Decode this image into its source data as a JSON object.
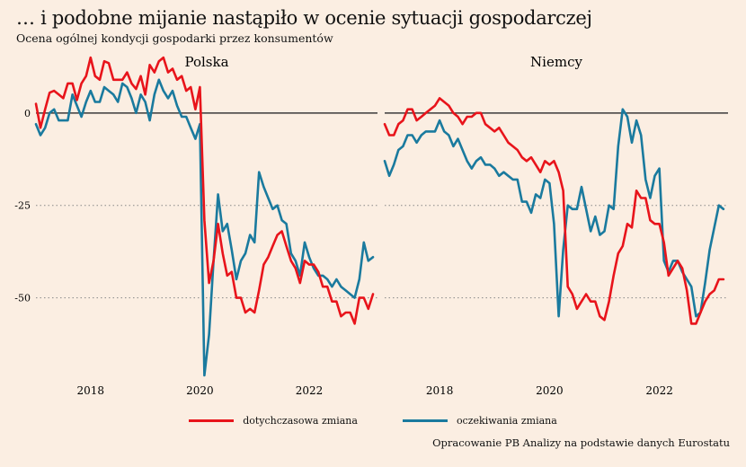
{
  "title": "… i podobne mijanie nastąpiło w ocenie sytuacji gospodarczej",
  "subtitle": "Ocena ogólnej kondycji gospodarki przez konsumentów",
  "source": "Opracowanie PB Analizy na podstawie danych Eurostatu",
  "colors": {
    "current": "#e8141b",
    "expected": "#1a7a9e",
    "zero": "#3a3a3a",
    "grid": "#888888"
  },
  "legend": [
    {
      "label": "dotychczasowa zmiana",
      "color": "#e8141b"
    },
    {
      "label": "oczekiwania zmiana",
      "color": "#1a7a9e"
    }
  ],
  "chart_data": [
    {
      "type": "line",
      "title": "Polska",
      "x_range": [
        2017.0,
        2023.25
      ],
      "ylim": [
        -71,
        16
      ],
      "ytick_values": [
        0,
        -25,
        -50
      ],
      "ytick_labels": [
        "0",
        "-25",
        "-50"
      ],
      "xtick_values": [
        2018,
        2020,
        2022
      ],
      "xtick_labels": [
        "2018",
        "2020",
        "2022"
      ],
      "grid": "dotted at -25 and -50, solid at 0",
      "series": [
        {
          "name": "dotychczasowa zmiana",
          "color": "#e8141b",
          "x": [
            2017.0,
            2017.083,
            2017.167,
            2017.25,
            2017.333,
            2017.417,
            2017.5,
            2017.583,
            2017.667,
            2017.75,
            2017.833,
            2017.917,
            2018.0,
            2018.083,
            2018.167,
            2018.25,
            2018.333,
            2018.417,
            2018.5,
            2018.583,
            2018.667,
            2018.75,
            2018.833,
            2018.917,
            2019.0,
            2019.083,
            2019.167,
            2019.25,
            2019.333,
            2019.417,
            2019.5,
            2019.583,
            2019.667,
            2019.75,
            2019.833,
            2019.917,
            2020.0,
            2020.083,
            2020.167,
            2020.25,
            2020.333,
            2020.417,
            2020.5,
            2020.583,
            2020.667,
            2020.75,
            2020.833,
            2020.917,
            2021.0,
            2021.083,
            2021.167,
            2021.25,
            2021.333,
            2021.417,
            2021.5,
            2021.583,
            2021.667,
            2021.75,
            2021.833,
            2021.917,
            2022.0,
            2022.083,
            2022.167,
            2022.25,
            2022.333,
            2022.417,
            2022.5,
            2022.583,
            2022.667,
            2022.75,
            2022.833,
            2022.917,
            2023.0,
            2023.083,
            2023.167
          ],
          "y": [
            2.5,
            -4,
            1,
            5.5,
            6,
            5,
            4,
            8,
            8,
            3.5,
            8,
            10,
            15,
            10,
            9,
            14,
            13.5,
            9,
            9,
            9,
            11,
            8,
            6.5,
            10,
            5,
            13,
            11,
            14,
            15,
            11,
            12,
            9,
            10,
            6,
            7,
            1,
            7,
            -29,
            -46,
            -40,
            -30,
            -38,
            -44,
            -43,
            -50,
            -50,
            -54,
            -53,
            -54,
            -48,
            -41,
            -39,
            -36,
            -33,
            -32,
            -36,
            -40,
            -42,
            -46,
            -40,
            -41,
            -41,
            -43,
            -47,
            -47,
            -51,
            -51,
            -55,
            -54,
            -54,
            -57,
            -50,
            -50,
            -53,
            -49
          ]
        },
        {
          "name": "oczekiwania zmiana",
          "color": "#1a7a9e",
          "x": [
            2017.0,
            2017.083,
            2017.167,
            2017.25,
            2017.333,
            2017.417,
            2017.5,
            2017.583,
            2017.667,
            2017.75,
            2017.833,
            2017.917,
            2018.0,
            2018.083,
            2018.167,
            2018.25,
            2018.333,
            2018.417,
            2018.5,
            2018.583,
            2018.667,
            2018.75,
            2018.833,
            2018.917,
            2019.0,
            2019.083,
            2019.167,
            2019.25,
            2019.333,
            2019.417,
            2019.5,
            2019.583,
            2019.667,
            2019.75,
            2019.833,
            2019.917,
            2020.0,
            2020.083,
            2020.167,
            2020.25,
            2020.333,
            2020.417,
            2020.5,
            2020.583,
            2020.667,
            2020.75,
            2020.833,
            2020.917,
            2021.0,
            2021.083,
            2021.167,
            2021.25,
            2021.333,
            2021.417,
            2021.5,
            2021.583,
            2021.667,
            2021.75,
            2021.833,
            2021.917,
            2022.0,
            2022.083,
            2022.167,
            2022.25,
            2022.333,
            2022.417,
            2022.5,
            2022.583,
            2022.667,
            2022.75,
            2022.833,
            2022.917,
            2023.0,
            2023.083,
            2023.167
          ],
          "y": [
            -3,
            -6,
            -4,
            0,
            1,
            -2,
            -2,
            -2,
            5,
            2,
            -1,
            3,
            6,
            3,
            3,
            7,
            6,
            5,
            3,
            8,
            7,
            4,
            0,
            5,
            3,
            -2,
            5,
            9,
            6,
            4,
            6,
            2,
            -1,
            -1,
            -4,
            -7,
            -3,
            -71,
            -60,
            -40,
            -22,
            -32,
            -30,
            -37,
            -45,
            -40,
            -38,
            -33,
            -35,
            -16,
            -20,
            -23,
            -26,
            -25,
            -29,
            -30,
            -38,
            -40,
            -44,
            -35,
            -39,
            -42,
            -44,
            -44,
            -45,
            -47,
            -45,
            -47,
            -48,
            -49,
            -50,
            -45,
            -35,
            -40,
            -39
          ]
        }
      ]
    },
    {
      "type": "line",
      "title": "Niemcy",
      "x_range": [
        2017.0,
        2023.25
      ],
      "ylim": [
        -71,
        16
      ],
      "ytick_values": [
        0,
        -25,
        -50
      ],
      "ytick_labels": [
        "0",
        "-25",
        "-50"
      ],
      "xtick_values": [
        2018,
        2020,
        2022
      ],
      "xtick_labels": [
        "2018",
        "2020",
        "2022"
      ],
      "grid": "dotted at -25 and -50, solid at 0",
      "series": [
        {
          "name": "dotychczasowa zmiana",
          "color": "#e8141b",
          "x": [
            2017.0,
            2017.083,
            2017.167,
            2017.25,
            2017.333,
            2017.417,
            2017.5,
            2017.583,
            2017.667,
            2017.75,
            2017.833,
            2017.917,
            2018.0,
            2018.083,
            2018.167,
            2018.25,
            2018.333,
            2018.417,
            2018.5,
            2018.583,
            2018.667,
            2018.75,
            2018.833,
            2018.917,
            2019.0,
            2019.083,
            2019.167,
            2019.25,
            2019.333,
            2019.417,
            2019.5,
            2019.583,
            2019.667,
            2019.75,
            2019.833,
            2019.917,
            2020.0,
            2020.083,
            2020.167,
            2020.25,
            2020.333,
            2020.417,
            2020.5,
            2020.583,
            2020.667,
            2020.75,
            2020.833,
            2020.917,
            2021.0,
            2021.083,
            2021.167,
            2021.25,
            2021.333,
            2021.417,
            2021.5,
            2021.583,
            2021.667,
            2021.75,
            2021.833,
            2021.917,
            2022.0,
            2022.083,
            2022.167,
            2022.25,
            2022.333,
            2022.417,
            2022.5,
            2022.583,
            2022.667,
            2022.75,
            2022.833,
            2022.917,
            2023.0,
            2023.083,
            2023.167
          ],
          "y": [
            -3,
            -6,
            -6,
            -3,
            -2,
            1,
            1,
            -2,
            -1,
            0,
            1,
            2,
            4,
            3,
            2,
            0,
            -1,
            -3,
            -1,
            -1,
            0,
            0,
            -3,
            -4,
            -5,
            -4,
            -6,
            -8,
            -9,
            -10,
            -12,
            -13,
            -12,
            -14,
            -16,
            -13,
            -14,
            -13,
            -16,
            -21,
            -47,
            -49,
            -53,
            -51,
            -49,
            -51,
            -51,
            -55,
            -56,
            -51,
            -44,
            -38,
            -36,
            -30,
            -31,
            -21,
            -23,
            -23,
            -29,
            -30,
            -30,
            -35,
            -44,
            -42,
            -40,
            -42,
            -48,
            -57,
            -57,
            -54,
            -51,
            -49,
            -48,
            -45,
            -45
          ]
        },
        {
          "name": "oczekiwania zmiana",
          "color": "#1a7a9e",
          "x": [
            2017.0,
            2017.083,
            2017.167,
            2017.25,
            2017.333,
            2017.417,
            2017.5,
            2017.583,
            2017.667,
            2017.75,
            2017.833,
            2017.917,
            2018.0,
            2018.083,
            2018.167,
            2018.25,
            2018.333,
            2018.417,
            2018.5,
            2018.583,
            2018.667,
            2018.75,
            2018.833,
            2018.917,
            2019.0,
            2019.083,
            2019.167,
            2019.25,
            2019.333,
            2019.417,
            2019.5,
            2019.583,
            2019.667,
            2019.75,
            2019.833,
            2019.917,
            2020.0,
            2020.083,
            2020.167,
            2020.25,
            2020.333,
            2020.417,
            2020.5,
            2020.583,
            2020.667,
            2020.75,
            2020.833,
            2020.917,
            2021.0,
            2021.083,
            2021.167,
            2021.25,
            2021.333,
            2021.417,
            2021.5,
            2021.583,
            2021.667,
            2021.75,
            2021.833,
            2021.917,
            2022.0,
            2022.083,
            2022.167,
            2022.25,
            2022.333,
            2022.417,
            2022.5,
            2022.583,
            2022.667,
            2022.75,
            2022.833,
            2022.917,
            2023.0,
            2023.083,
            2023.167
          ],
          "y": [
            -13,
            -17,
            -14,
            -10,
            -9,
            -6,
            -6,
            -8,
            -6,
            -5,
            -5,
            -5,
            -2,
            -5,
            -6,
            -9,
            -7,
            -10,
            -13,
            -15,
            -13,
            -12,
            -14,
            -14,
            -15,
            -17,
            -16,
            -17,
            -18,
            -18,
            -24,
            -24,
            -27,
            -22,
            -23,
            -18,
            -19,
            -30,
            -55,
            -37,
            -25,
            -26,
            -26,
            -20,
            -26,
            -32,
            -28,
            -33,
            -32,
            -25,
            -26,
            -9,
            1,
            -1,
            -8,
            -2,
            -6,
            -18,
            -23,
            -17,
            -15,
            -40,
            -43,
            -40,
            -40,
            -43,
            -45,
            -47,
            -55,
            -54,
            -46,
            -37,
            -31,
            -25,
            -26
          ]
        }
      ]
    }
  ]
}
